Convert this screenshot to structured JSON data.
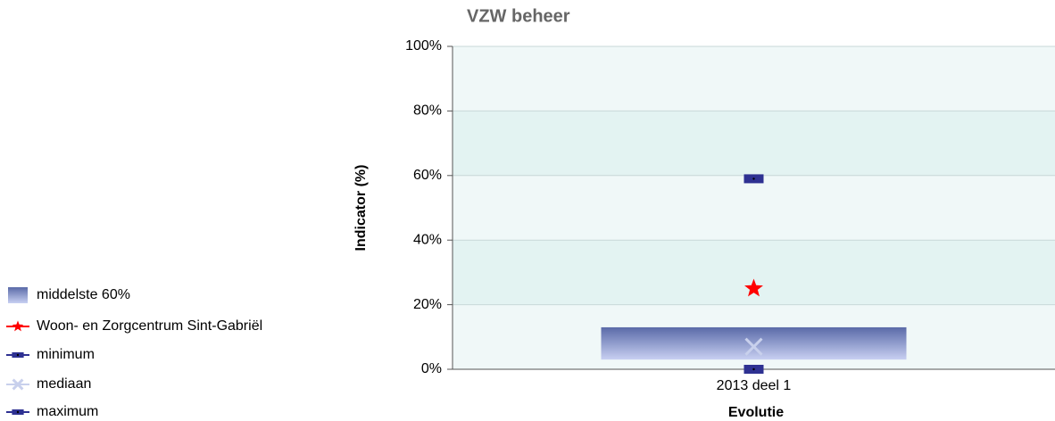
{
  "chart_data": {
    "type": "box-range",
    "title": "VZW beheer",
    "xlabel": "Evolutie",
    "ylabel": "Indicator (%)",
    "categories": [
      "2013 deel 1"
    ],
    "ylim": [
      0,
      100
    ],
    "yticks": [
      {
        "value": 0,
        "label": "0%"
      },
      {
        "value": 20,
        "label": "20%"
      },
      {
        "value": 40,
        "label": "40%"
      },
      {
        "value": 60,
        "label": "60%"
      },
      {
        "value": 80,
        "label": "80%"
      },
      {
        "value": 100,
        "label": "100%"
      }
    ],
    "grid": true,
    "legend": "bottom-left",
    "series": [
      {
        "name": "middelste 60%",
        "color": "#5a6aa8",
        "marker": "box",
        "low": [
          3
        ],
        "high": [
          13
        ]
      },
      {
        "name": "Woon- en Zorgcentrum Sint-Gabriël",
        "color": "#ff0000",
        "marker": "star",
        "values": [
          25
        ]
      },
      {
        "name": "minimum",
        "color": "#2e3192",
        "marker": "square",
        "values": [
          0
        ]
      },
      {
        "name": "mediaan",
        "color": "#c8d0ec",
        "marker": "x",
        "values": [
          7
        ]
      },
      {
        "name": "maximum",
        "color": "#2e3192",
        "marker": "square",
        "values": [
          59
        ]
      }
    ]
  }
}
